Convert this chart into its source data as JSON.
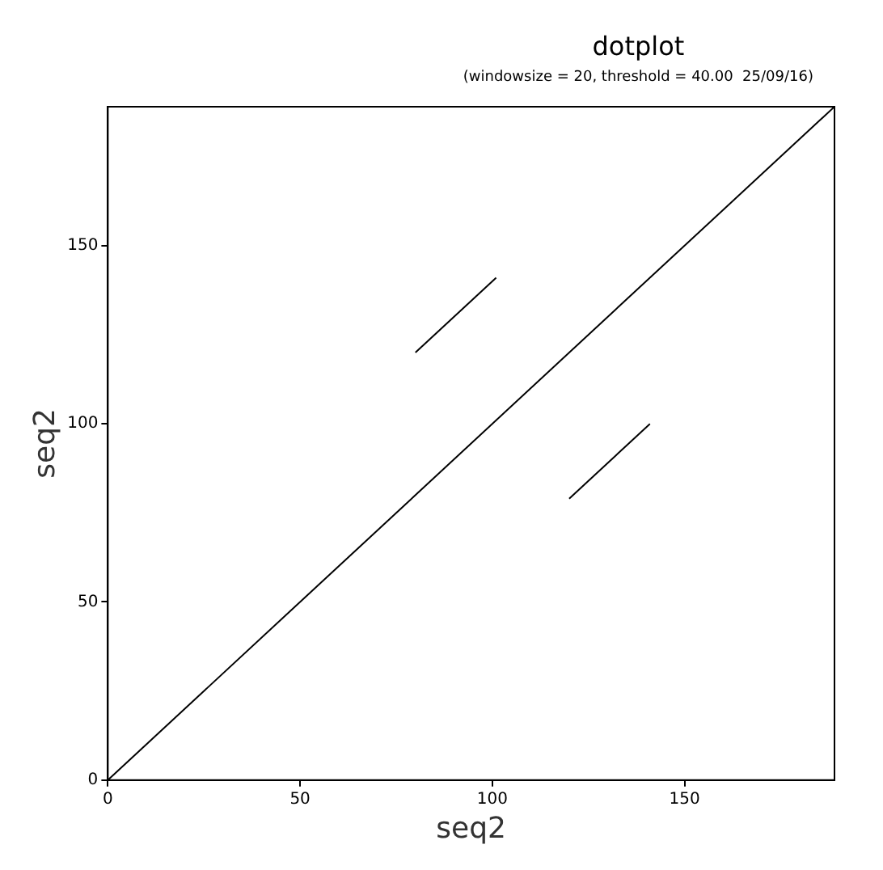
{
  "chart_data": {
    "type": "line",
    "title": "dotplot",
    "subtitle": "(windowsize = 20, threshold = 40.00  25/09/16)",
    "xlabel": "seq2",
    "ylabel": "seq2",
    "series": [
      {
        "x": [
          0,
          189
        ],
        "values": [
          0,
          189
        ],
        "color": "#000000"
      },
      {
        "x": [
          80,
          101
        ],
        "values": [
          120,
          141
        ],
        "color": "#000000"
      },
      {
        "x": [
          120,
          141
        ],
        "values": [
          79,
          100
        ],
        "color": "#000000"
      }
    ],
    "xlim": [
      0,
      189
    ],
    "ylim": [
      0,
      189
    ],
    "xticks": [
      0,
      50,
      100,
      150
    ],
    "yticks": [
      0,
      50,
      100,
      150
    ],
    "marker": "none",
    "line_style": "solid",
    "legend": false
  }
}
